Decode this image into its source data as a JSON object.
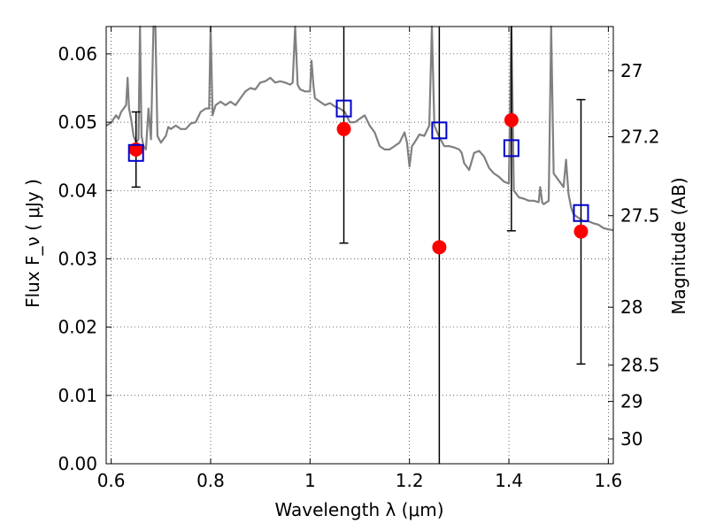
{
  "chart_data": {
    "type": "scatter",
    "xlabel": "Wavelength λ (μm)",
    "ylabel": "Flux F_ν ( μJy )",
    "y2label": "Magnitude (AB)",
    "xlim": [
      0.59,
      1.61
    ],
    "ylim": [
      0.0,
      0.064
    ],
    "grid": true,
    "x_ticks": [
      0.6,
      0.8,
      1.0,
      1.2,
      1.4,
      1.6
    ],
    "x_tick_labels": [
      "0.6",
      "0.8",
      "1",
      "1.2",
      "1.4",
      "1.6"
    ],
    "y_ticks": [
      0.0,
      0.01,
      0.02,
      0.03,
      0.04,
      0.05,
      0.06
    ],
    "y_tick_labels": [
      "0.00",
      "0.01",
      "0.02",
      "0.03",
      "0.04",
      "0.05",
      "0.06"
    ],
    "y2_ticks": [
      27,
      27.2,
      27.5,
      28,
      28.5,
      29,
      30
    ],
    "y2_tick_labels": [
      "27",
      "27.2",
      "27.5",
      "28",
      "28.5",
      "29",
      "30"
    ],
    "observed": {
      "color": "#ff0000",
      "points": [
        {
          "x": 0.65,
          "y": 0.046,
          "err_lo": 0.0405,
          "err_hi": 0.0515
        },
        {
          "x": 1.068,
          "y": 0.049,
          "err_lo": 0.0323,
          "err_hi": 0.064
        },
        {
          "x": 1.26,
          "y": 0.0317,
          "err_lo": 0.0,
          "err_hi": 0.064
        },
        {
          "x": 1.405,
          "y": 0.0503,
          "err_lo": 0.0341,
          "err_hi": 0.064
        },
        {
          "x": 1.545,
          "y": 0.034,
          "err_lo": 0.0146,
          "err_hi": 0.0533
        }
      ]
    },
    "model_photometry": {
      "color": "#0000cc",
      "points": [
        {
          "x": 0.65,
          "y": 0.0455
        },
        {
          "x": 1.068,
          "y": 0.052
        },
        {
          "x": 1.26,
          "y": 0.0488
        },
        {
          "x": 1.405,
          "y": 0.0462
        },
        {
          "x": 1.545,
          "y": 0.0367
        }
      ]
    },
    "template_spectrum": {
      "color": "#808080",
      "points": [
        [
          0.59,
          0.0495
        ],
        [
          0.6,
          0.0499
        ],
        [
          0.605,
          0.0505
        ],
        [
          0.61,
          0.051
        ],
        [
          0.615,
          0.0505
        ],
        [
          0.62,
          0.0515
        ],
        [
          0.625,
          0.052
        ],
        [
          0.63,
          0.0525
        ],
        [
          0.633,
          0.0565
        ],
        [
          0.636,
          0.052
        ],
        [
          0.64,
          0.0505
        ],
        [
          0.645,
          0.048
        ],
        [
          0.65,
          0.047
        ],
        [
          0.655,
          0.0475
        ],
        [
          0.658,
          0.064
        ],
        [
          0.661,
          0.048
        ],
        [
          0.665,
          0.0465
        ],
        [
          0.67,
          0.046
        ],
        [
          0.675,
          0.052
        ],
        [
          0.68,
          0.0475
        ],
        [
          0.685,
          0.064
        ],
        [
          0.689,
          0.064
        ],
        [
          0.693,
          0.048
        ],
        [
          0.7,
          0.047
        ],
        [
          0.71,
          0.048
        ],
        [
          0.715,
          0.0493
        ],
        [
          0.72,
          0.049
        ],
        [
          0.73,
          0.0495
        ],
        [
          0.74,
          0.049
        ],
        [
          0.75,
          0.049
        ],
        [
          0.76,
          0.0498
        ],
        [
          0.77,
          0.05
        ],
        [
          0.78,
          0.0515
        ],
        [
          0.79,
          0.052
        ],
        [
          0.797,
          0.052
        ],
        [
          0.8,
          0.064
        ],
        [
          0.804,
          0.051
        ],
        [
          0.81,
          0.0525
        ],
        [
          0.82,
          0.053
        ],
        [
          0.83,
          0.0525
        ],
        [
          0.84,
          0.053
        ],
        [
          0.85,
          0.0525
        ],
        [
          0.86,
          0.0535
        ],
        [
          0.87,
          0.0545
        ],
        [
          0.88,
          0.055
        ],
        [
          0.89,
          0.0548
        ],
        [
          0.9,
          0.0558
        ],
        [
          0.91,
          0.056
        ],
        [
          0.92,
          0.0565
        ],
        [
          0.93,
          0.0558
        ],
        [
          0.94,
          0.056
        ],
        [
          0.95,
          0.0558
        ],
        [
          0.96,
          0.0555
        ],
        [
          0.965,
          0.0558
        ],
        [
          0.97,
          0.064
        ],
        [
          0.975,
          0.0555
        ],
        [
          0.98,
          0.0548
        ],
        [
          0.99,
          0.0545
        ],
        [
          1.0,
          0.0545
        ],
        [
          1.003,
          0.059
        ],
        [
          1.007,
          0.0552
        ],
        [
          1.01,
          0.0535
        ],
        [
          1.02,
          0.053
        ],
        [
          1.03,
          0.0525
        ],
        [
          1.04,
          0.0528
        ],
        [
          1.05,
          0.0523
        ],
        [
          1.06,
          0.052
        ],
        [
          1.07,
          0.0515
        ],
        [
          1.08,
          0.05
        ],
        [
          1.09,
          0.05
        ],
        [
          1.1,
          0.0505
        ],
        [
          1.11,
          0.051
        ],
        [
          1.12,
          0.0495
        ],
        [
          1.13,
          0.0485
        ],
        [
          1.14,
          0.0465
        ],
        [
          1.15,
          0.046
        ],
        [
          1.16,
          0.046
        ],
        [
          1.17,
          0.0465
        ],
        [
          1.18,
          0.047
        ],
        [
          1.19,
          0.0485
        ],
        [
          1.195,
          0.047
        ],
        [
          1.2,
          0.0435
        ],
        [
          1.205,
          0.0465
        ],
        [
          1.21,
          0.047
        ],
        [
          1.22,
          0.0482
        ],
        [
          1.23,
          0.048
        ],
        [
          1.24,
          0.0495
        ],
        [
          1.245,
          0.064
        ],
        [
          1.25,
          0.0495
        ],
        [
          1.26,
          0.0478
        ],
        [
          1.27,
          0.0465
        ],
        [
          1.28,
          0.0465
        ],
        [
          1.29,
          0.0463
        ],
        [
          1.3,
          0.046
        ],
        [
          1.305,
          0.0455
        ],
        [
          1.31,
          0.044
        ],
        [
          1.32,
          0.043
        ],
        [
          1.33,
          0.0455
        ],
        [
          1.34,
          0.0458
        ],
        [
          1.35,
          0.045
        ],
        [
          1.36,
          0.0433
        ],
        [
          1.37,
          0.0425
        ],
        [
          1.38,
          0.042
        ],
        [
          1.39,
          0.0413
        ],
        [
          1.4,
          0.041
        ],
        [
          1.405,
          0.064
        ],
        [
          1.41,
          0.04
        ],
        [
          1.42,
          0.039
        ],
        [
          1.43,
          0.0388
        ],
        [
          1.44,
          0.0385
        ],
        [
          1.45,
          0.0385
        ],
        [
          1.46,
          0.0383
        ],
        [
          1.463,
          0.0405
        ],
        [
          1.467,
          0.0382
        ],
        [
          1.47,
          0.038
        ],
        [
          1.48,
          0.0385
        ],
        [
          1.485,
          0.064
        ],
        [
          1.49,
          0.0425
        ],
        [
          1.5,
          0.0415
        ],
        [
          1.51,
          0.0405
        ],
        [
          1.515,
          0.0445
        ],
        [
          1.52,
          0.0395
        ],
        [
          1.525,
          0.0375
        ],
        [
          1.53,
          0.0365
        ],
        [
          1.54,
          0.036
        ],
        [
          1.55,
          0.0355
        ],
        [
          1.56,
          0.0355
        ],
        [
          1.57,
          0.0352
        ],
        [
          1.58,
          0.035
        ],
        [
          1.59,
          0.0345
        ],
        [
          1.6,
          0.0343
        ],
        [
          1.61,
          0.0342
        ]
      ]
    }
  }
}
